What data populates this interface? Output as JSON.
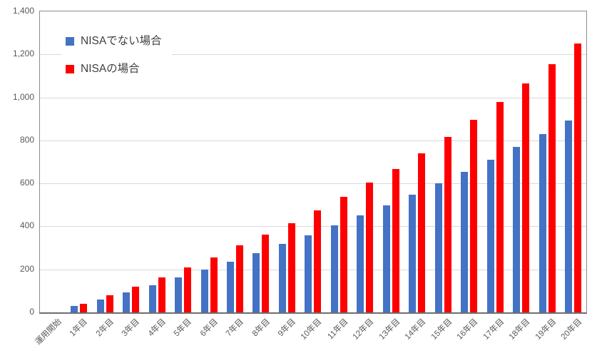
{
  "chart_data": {
    "type": "bar",
    "title": "",
    "xlabel": "",
    "ylabel": "",
    "categories": [
      "運用開始",
      "1年目",
      "2年目",
      "3年目",
      "4年目",
      "5年目",
      "6年目",
      "7年目",
      "8年目",
      "9年目",
      "10年目",
      "11年目",
      "12年目",
      "13年目",
      "14年目",
      "15年目",
      "16年目",
      "17年目",
      "18年目",
      "19年目",
      "20年目"
    ],
    "series": [
      {
        "name": "NISAでない場合",
        "color": "#4472C4",
        "values": [
          0,
          30,
          61,
          94,
          127,
          163,
          199,
          237,
          277,
          318,
          360,
          405,
          451,
          499,
          549,
          601,
          655,
          711,
          770,
          830,
          894
        ]
      },
      {
        "name": "NISAの場合",
        "color": "#FF0000",
        "values": [
          0,
          40,
          79,
          120,
          164,
          210,
          257,
          312,
          363,
          415,
          476,
          539,
          603,
          667,
          740,
          815,
          895,
          978,
          1066,
          1155,
          1250
        ]
      }
    ],
    "ylim": [
      0,
      1400
    ],
    "ytick_step": 200,
    "ytick_labels": [
      "0",
      "200",
      "400",
      "600",
      "800",
      "1,000",
      "1,200",
      "1,400"
    ],
    "grid": true,
    "legend_position": "top-left-inside"
  },
  "colors": {
    "gridline": "#d9d9d9",
    "plot_border": "#8c8c8c",
    "axis_text": "#595959",
    "legend_text": "#404040",
    "background": "#ffffff"
  }
}
